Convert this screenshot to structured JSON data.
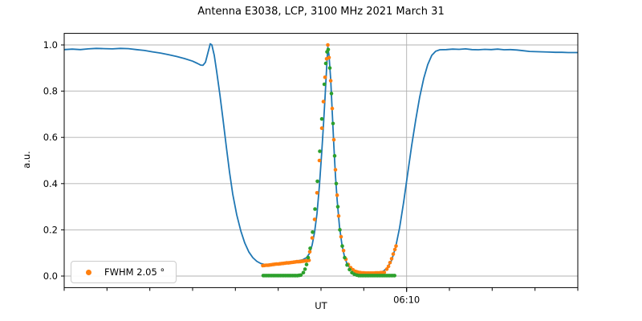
{
  "chart_data": {
    "type": "line",
    "title": "Antenna E3038, LCP, 3100 MHz 2021 March 31",
    "x_axis": {
      "label": "UT",
      "start": "05:30",
      "end": "06:30",
      "x_unit": "minutes after 05:30",
      "minor_tick_step_min": 5,
      "major_ticks": [
        {
          "t": 40,
          "label": "06:10"
        }
      ]
    },
    "y_axis": {
      "label": "a.u.",
      "ticks": [
        "0.0",
        "0.2",
        "0.4",
        "0.6",
        "0.8",
        "1.0"
      ],
      "tick_values": [
        0.0,
        0.2,
        0.4,
        0.6,
        0.8,
        1.0
      ],
      "lim": [
        -0.05,
        1.05
      ]
    },
    "grid": true,
    "legend": {
      "label": "FWHM 2.05 °",
      "marker_color": "#ff7f0e",
      "location": "lower left"
    },
    "colors": {
      "grid": "#b0b0b0",
      "spine": "#000000",
      "background": "#ffffff"
    },
    "series": [
      {
        "name": "blue-line",
        "type": "line",
        "color": "#1f77b4",
        "points": [
          [
            0,
            0.98
          ],
          [
            0.94,
            0.982
          ],
          [
            1.88,
            0.98
          ],
          [
            2.81,
            0.983
          ],
          [
            3.75,
            0.985
          ],
          [
            4.69,
            0.984
          ],
          [
            5.63,
            0.983
          ],
          [
            6.56,
            0.985
          ],
          [
            7.5,
            0.984
          ],
          [
            8.44,
            0.98
          ],
          [
            9.38,
            0.976
          ],
          [
            10.31,
            0.97
          ],
          [
            11.25,
            0.965
          ],
          [
            12.19,
            0.958
          ],
          [
            13.13,
            0.95
          ],
          [
            14.06,
            0.941
          ],
          [
            15,
            0.93
          ],
          [
            15.56,
            0.92
          ],
          [
            15.94,
            0.913
          ],
          [
            16.22,
            0.912
          ],
          [
            16.5,
            0.925
          ],
          [
            16.78,
            0.965
          ],
          [
            17.06,
            1.005
          ],
          [
            17.25,
            1.0
          ],
          [
            17.53,
            0.955
          ],
          [
            17.81,
            0.885
          ],
          [
            18.19,
            0.785
          ],
          [
            18.56,
            0.675
          ],
          [
            18.94,
            0.56
          ],
          [
            19.31,
            0.45
          ],
          [
            19.69,
            0.355
          ],
          [
            20.16,
            0.265
          ],
          [
            20.63,
            0.195
          ],
          [
            21.09,
            0.143
          ],
          [
            21.56,
            0.105
          ],
          [
            22.03,
            0.08
          ],
          [
            22.5,
            0.064
          ],
          [
            22.97,
            0.054
          ],
          [
            23.44,
            0.05
          ],
          [
            24.19,
            0.052
          ],
          [
            24.94,
            0.055
          ],
          [
            25.69,
            0.058
          ],
          [
            26.44,
            0.061
          ],
          [
            27.19,
            0.065
          ],
          [
            27.84,
            0.07
          ],
          [
            28.31,
            0.08
          ],
          [
            28.69,
            0.1
          ],
          [
            28.97,
            0.135
          ],
          [
            29.25,
            0.19
          ],
          [
            29.53,
            0.27
          ],
          [
            29.81,
            0.39
          ],
          [
            30.09,
            0.54
          ],
          [
            30.28,
            0.65
          ],
          [
            30.47,
            0.77
          ],
          [
            30.66,
            0.9
          ],
          [
            30.8,
            0.99
          ],
          [
            30.94,
            0.955
          ],
          [
            31.13,
            0.85
          ],
          [
            31.31,
            0.71
          ],
          [
            31.5,
            0.565
          ],
          [
            31.69,
            0.435
          ],
          [
            31.88,
            0.33
          ],
          [
            32.16,
            0.215
          ],
          [
            32.44,
            0.138
          ],
          [
            32.72,
            0.088
          ],
          [
            33,
            0.057
          ],
          [
            33.38,
            0.034
          ],
          [
            33.75,
            0.023
          ],
          [
            34.22,
            0.016
          ],
          [
            34.69,
            0.013
          ],
          [
            35.44,
            0.011
          ],
          [
            36.19,
            0.011
          ],
          [
            36.84,
            0.014
          ],
          [
            37.31,
            0.022
          ],
          [
            37.78,
            0.038
          ],
          [
            38.25,
            0.068
          ],
          [
            38.72,
            0.125
          ],
          [
            39.19,
            0.21
          ],
          [
            39.66,
            0.32
          ],
          [
            40.13,
            0.445
          ],
          [
            40.59,
            0.565
          ],
          [
            41.06,
            0.675
          ],
          [
            41.53,
            0.775
          ],
          [
            42,
            0.855
          ],
          [
            42.47,
            0.915
          ],
          [
            42.94,
            0.955
          ],
          [
            43.41,
            0.973
          ],
          [
            43.88,
            0.979
          ],
          [
            44.63,
            0.98
          ],
          [
            45.38,
            0.982
          ],
          [
            46.13,
            0.981
          ],
          [
            46.88,
            0.983
          ],
          [
            47.63,
            0.98
          ],
          [
            48.38,
            0.979
          ],
          [
            49.13,
            0.981
          ],
          [
            49.88,
            0.98
          ],
          [
            50.63,
            0.982
          ],
          [
            51.38,
            0.979
          ],
          [
            52.13,
            0.98
          ],
          [
            52.88,
            0.978
          ],
          [
            53.63,
            0.975
          ],
          [
            54.38,
            0.972
          ],
          [
            55.13,
            0.971
          ],
          [
            55.88,
            0.97
          ],
          [
            56.63,
            0.969
          ],
          [
            57.38,
            0.968
          ],
          [
            58.13,
            0.968
          ],
          [
            58.88,
            0.967
          ],
          [
            59.63,
            0.967
          ],
          [
            60,
            0.967
          ]
        ]
      },
      {
        "name": "orange-points",
        "type": "scatter",
        "color": "#ff7f0e",
        "in_legend": true,
        "points": [
          [
            23.2,
            0.045
          ],
          [
            23.4,
            0.046
          ],
          [
            23.6,
            0.047
          ],
          [
            23.8,
            0.047
          ],
          [
            24,
            0.048
          ],
          [
            24.2,
            0.049
          ],
          [
            24.4,
            0.05
          ],
          [
            24.6,
            0.051
          ],
          [
            24.8,
            0.052
          ],
          [
            25,
            0.052
          ],
          [
            25.2,
            0.053
          ],
          [
            25.4,
            0.054
          ],
          [
            25.6,
            0.055
          ],
          [
            25.8,
            0.056
          ],
          [
            26,
            0.057
          ],
          [
            26.2,
            0.057
          ],
          [
            26.4,
            0.058
          ],
          [
            26.6,
            0.059
          ],
          [
            26.8,
            0.06
          ],
          [
            27,
            0.061
          ],
          [
            27.2,
            0.062
          ],
          [
            27.4,
            0.062
          ],
          [
            27.6,
            0.063
          ],
          [
            27.8,
            0.064
          ],
          [
            28,
            0.065
          ],
          [
            28.2,
            0.066
          ],
          [
            28.4,
            0.067
          ],
          [
            28.6,
            0.068
          ],
          [
            28.69,
            0.105
          ],
          [
            28.97,
            0.165
          ],
          [
            29.25,
            0.245
          ],
          [
            29.53,
            0.36
          ],
          [
            29.81,
            0.5
          ],
          [
            30.09,
            0.64
          ],
          [
            30.28,
            0.755
          ],
          [
            30.47,
            0.86
          ],
          [
            30.66,
            0.94
          ],
          [
            30.8,
            1.0
          ],
          [
            30.94,
            0.945
          ],
          [
            31.13,
            0.845
          ],
          [
            31.31,
            0.725
          ],
          [
            31.5,
            0.59
          ],
          [
            31.69,
            0.46
          ],
          [
            31.88,
            0.35
          ],
          [
            32.06,
            0.26
          ],
          [
            32.34,
            0.17
          ],
          [
            32.63,
            0.11
          ],
          [
            32.91,
            0.073
          ],
          [
            33.19,
            0.05
          ],
          [
            33.47,
            0.036
          ],
          [
            33.75,
            0.027
          ],
          [
            34.03,
            0.02
          ],
          [
            34.2,
            0.018
          ],
          [
            34.4,
            0.016
          ],
          [
            34.6,
            0.015
          ],
          [
            34.8,
            0.014
          ],
          [
            35,
            0.014
          ],
          [
            35.2,
            0.013
          ],
          [
            35.4,
            0.013
          ],
          [
            35.6,
            0.013
          ],
          [
            35.8,
            0.013
          ],
          [
            36,
            0.013
          ],
          [
            36.2,
            0.013
          ],
          [
            36.4,
            0.014
          ],
          [
            36.6,
            0.014
          ],
          [
            36.8,
            0.014
          ],
          [
            37,
            0.015
          ],
          [
            37.2,
            0.015
          ],
          [
            37.4,
            0.016
          ],
          [
            37.69,
            0.03
          ],
          [
            37.88,
            0.042
          ],
          [
            38.06,
            0.058
          ],
          [
            38.25,
            0.075
          ],
          [
            38.44,
            0.095
          ],
          [
            38.63,
            0.115
          ],
          [
            38.77,
            0.13
          ]
        ]
      },
      {
        "name": "green-points",
        "type": "scatter",
        "color": "#2ca02c",
        "in_legend": false,
        "points": [
          [
            23.25,
            0.002
          ],
          [
            23.45,
            0.002
          ],
          [
            23.65,
            0.002
          ],
          [
            23.85,
            0.002
          ],
          [
            24.05,
            0.002
          ],
          [
            24.25,
            0.002
          ],
          [
            24.45,
            0.002
          ],
          [
            24.65,
            0.002
          ],
          [
            24.85,
            0.002
          ],
          [
            25.05,
            0.002
          ],
          [
            25.25,
            0.002
          ],
          [
            25.45,
            0.002
          ],
          [
            25.65,
            0.002
          ],
          [
            25.85,
            0.002
          ],
          [
            26.05,
            0.002
          ],
          [
            26.25,
            0.002
          ],
          [
            26.45,
            0.002
          ],
          [
            26.65,
            0.002
          ],
          [
            26.85,
            0.002
          ],
          [
            27.05,
            0.002
          ],
          [
            27.25,
            0.002
          ],
          [
            27.45,
            0.003
          ],
          [
            27.65,
            0.004
          ],
          [
            27.94,
            0.015
          ],
          [
            28.13,
            0.03
          ],
          [
            28.31,
            0.05
          ],
          [
            28.5,
            0.08
          ],
          [
            28.73,
            0.12
          ],
          [
            29.02,
            0.19
          ],
          [
            29.3,
            0.29
          ],
          [
            29.58,
            0.41
          ],
          [
            29.86,
            0.54
          ],
          [
            30.09,
            0.68
          ],
          [
            30.38,
            0.83
          ],
          [
            30.56,
            0.92
          ],
          [
            30.7,
            0.97
          ],
          [
            30.84,
            0.98
          ],
          [
            31.03,
            0.9
          ],
          [
            31.22,
            0.79
          ],
          [
            31.41,
            0.66
          ],
          [
            31.59,
            0.52
          ],
          [
            31.78,
            0.4
          ],
          [
            31.97,
            0.3
          ],
          [
            32.2,
            0.2
          ],
          [
            32.48,
            0.13
          ],
          [
            32.77,
            0.08
          ],
          [
            33.05,
            0.048
          ],
          [
            33.33,
            0.028
          ],
          [
            33.61,
            0.015
          ],
          [
            33.89,
            0.008
          ],
          [
            34.17,
            0.004
          ],
          [
            34.4,
            0.002
          ],
          [
            34.6,
            0.002
          ],
          [
            34.8,
            0.002
          ],
          [
            35,
            0.002
          ],
          [
            35.2,
            0.002
          ],
          [
            35.4,
            0.002
          ],
          [
            35.6,
            0.002
          ],
          [
            35.8,
            0.002
          ],
          [
            36,
            0.002
          ],
          [
            36.2,
            0.002
          ],
          [
            36.4,
            0.002
          ],
          [
            36.6,
            0.002
          ],
          [
            36.8,
            0.002
          ],
          [
            37,
            0.002
          ],
          [
            37.2,
            0.002
          ],
          [
            37.4,
            0.002
          ],
          [
            37.6,
            0.002
          ],
          [
            37.8,
            0.002
          ],
          [
            38,
            0.002
          ],
          [
            38.2,
            0.002
          ],
          [
            38.4,
            0.002
          ],
          [
            38.6,
            0.002
          ]
        ]
      }
    ]
  }
}
